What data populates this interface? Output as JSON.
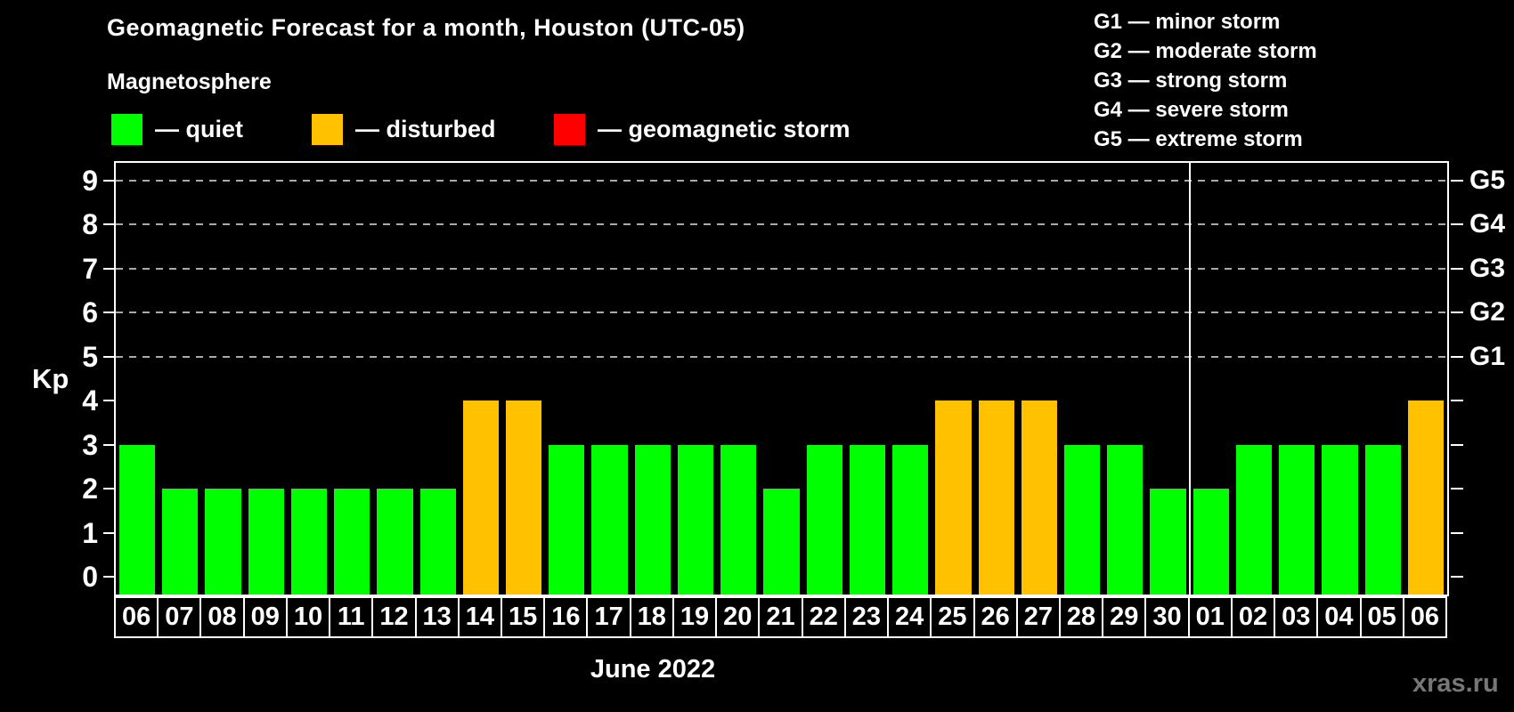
{
  "title": "Geomagnetic Forecast for a month, Houston (UTC-05)",
  "subtitle": "Magnetosphere",
  "watermark": "xras.ru",
  "legend": {
    "quiet": {
      "label": "— quiet",
      "color": "#00ff00"
    },
    "disturbed": {
      "label": "— disturbed",
      "color": "#ffc100"
    },
    "storm": {
      "label": "— geomagnetic storm",
      "color": "#ff0000"
    }
  },
  "g_legend": [
    "G1 — minor storm",
    "G2 — moderate storm",
    "G3 — strong storm",
    "G4 — severe storm",
    "G5 — extreme storm"
  ],
  "chart_data": {
    "type": "bar",
    "title": "Geomagnetic Forecast for a month, Houston (UTC-05)",
    "ylabel": "Kp",
    "xlabel": "June 2022",
    "ylim": [
      0,
      9
    ],
    "yticks": [
      0,
      1,
      2,
      3,
      4,
      5,
      6,
      7,
      8,
      9
    ],
    "gridlines_at": [
      5,
      6,
      7,
      8,
      9
    ],
    "grid": "dashed",
    "legend_position": "top-left",
    "right_axis_labels": [
      {
        "kp": 5,
        "label": "G1"
      },
      {
        "kp": 6,
        "label": "G2"
      },
      {
        "kp": 7,
        "label": "G3"
      },
      {
        "kp": 8,
        "label": "G4"
      },
      {
        "kp": 9,
        "label": "G5"
      }
    ],
    "categories": [
      "06",
      "07",
      "08",
      "09",
      "10",
      "11",
      "12",
      "13",
      "14",
      "15",
      "16",
      "17",
      "18",
      "19",
      "20",
      "21",
      "22",
      "23",
      "24",
      "25",
      "26",
      "27",
      "28",
      "29",
      "30",
      "01",
      "02",
      "03",
      "04",
      "05",
      "06"
    ],
    "values": [
      3,
      2,
      2,
      2,
      2,
      2,
      2,
      2,
      4,
      4,
      3,
      3,
      3,
      3,
      3,
      2,
      3,
      3,
      3,
      4,
      4,
      4,
      3,
      3,
      2,
      2,
      3,
      3,
      3,
      3,
      4
    ],
    "bar_status": [
      "quiet",
      "quiet",
      "quiet",
      "quiet",
      "quiet",
      "quiet",
      "quiet",
      "quiet",
      "disturbed",
      "disturbed",
      "quiet",
      "quiet",
      "quiet",
      "quiet",
      "quiet",
      "quiet",
      "quiet",
      "quiet",
      "quiet",
      "disturbed",
      "disturbed",
      "disturbed",
      "quiet",
      "quiet",
      "quiet",
      "quiet",
      "quiet",
      "quiet",
      "quiet",
      "quiet",
      "disturbed"
    ],
    "month_separator_before_index": 25
  }
}
